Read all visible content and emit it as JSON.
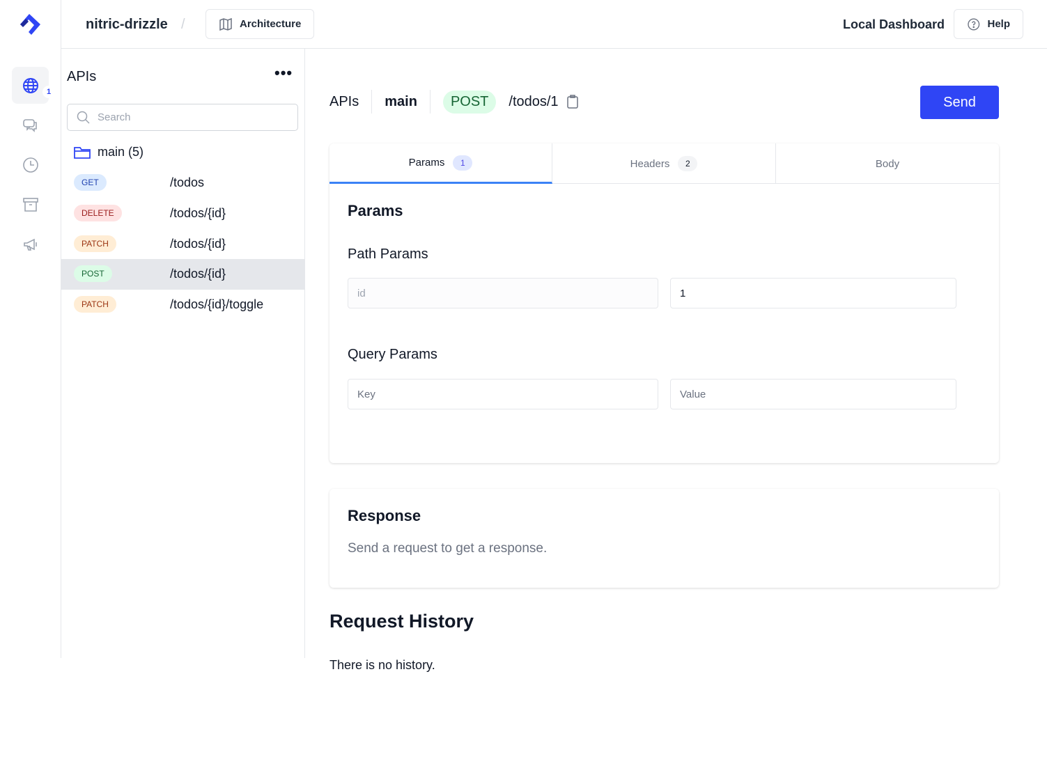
{
  "header": {
    "project": "nitric-drizzle",
    "separator": "/",
    "architecture_label": "Architecture",
    "dashboard_label": "Local Dashboard",
    "help_label": "Help"
  },
  "rail": {
    "apis_badge": "1",
    "items": [
      "globe-icon",
      "chat-icon",
      "clock-icon",
      "archive-icon",
      "megaphone-icon"
    ]
  },
  "sidebar": {
    "title": "APIs",
    "search_placeholder": "Search",
    "group": "main (5)",
    "routes": [
      {
        "method": "GET",
        "path": "/todos"
      },
      {
        "method": "DELETE",
        "path": "/todos/{id}"
      },
      {
        "method": "PATCH",
        "path": "/todos/{id}"
      },
      {
        "method": "POST",
        "path": "/todos/{id}"
      },
      {
        "method": "PATCH",
        "path": "/todos/{id}/toggle"
      }
    ]
  },
  "request": {
    "crumb_api": "APIs",
    "crumb_group": "main",
    "method": "POST",
    "url": "/todos/1",
    "send_label": "Send"
  },
  "tabs": [
    {
      "label": "Params",
      "count": "1"
    },
    {
      "label": "Headers",
      "count": "2"
    },
    {
      "label": "Body"
    }
  ],
  "params": {
    "title": "Params",
    "path_title": "Path Params",
    "path_key": "id",
    "path_value": "1",
    "query_title": "Query Params",
    "key_placeholder": "Key",
    "value_placeholder": "Value"
  },
  "response": {
    "title": "Response",
    "message": "Send a request to get a response."
  },
  "history": {
    "title": "Request History",
    "message": "There is no history."
  },
  "colors": {
    "accent": "#2f45f5",
    "GET": "#dbeafe",
    "DELETE": "#fee2e2",
    "PATCH": "#ffedd5",
    "POST": "#dcfce7"
  }
}
